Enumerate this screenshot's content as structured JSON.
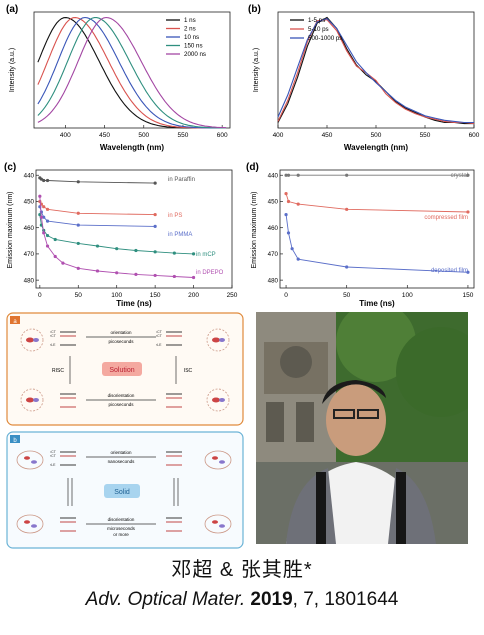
{
  "panels": {
    "a": {
      "label": "(a)",
      "ylabel": "Intensity (a.u.)",
      "xlabel": "Wavelength (nm)",
      "xticks": [
        "400",
        "450",
        "500",
        "550",
        "600"
      ],
      "legend": [
        "1 ns",
        "2 ns",
        "10 ns",
        "150 ns",
        "2000 ns"
      ]
    },
    "b": {
      "label": "(b)",
      "ylabel": "Intensity (a.u.)",
      "xlabel": "Wavelength (nm)",
      "xticks": [
        "400",
        "450",
        "500",
        "550",
        "600"
      ],
      "legend": [
        "1-5 ps",
        "5-10 ps",
        "500-1000 ps"
      ]
    },
    "c": {
      "label": "(c)",
      "ylabel": "Emission maximum (nm)",
      "xlabel": "Time (ns)",
      "xticks": [
        "0",
        "50",
        "100",
        "150",
        "200",
        "250"
      ],
      "yticks": [
        "440",
        "450",
        "460",
        "470",
        "480"
      ],
      "annotations": [
        "in Paraffin",
        "in PS",
        "in PMMA",
        "in mCP",
        "in DPEPO"
      ]
    },
    "d": {
      "label": "(d)",
      "ylabel": "Emission maximum (nm)",
      "xlabel": "Time (ns)",
      "xticks": [
        "0",
        "50",
        "100",
        "150"
      ],
      "yticks": [
        "440",
        "450",
        "460",
        "470",
        "480"
      ],
      "annotations": [
        "crystal",
        "compressed film",
        "deposited film"
      ]
    }
  },
  "scheme_top": {
    "tag": "a",
    "center_label": "Solution",
    "left_label": "RISC",
    "right_label": "ISC",
    "top_text": [
      "orientation",
      "picoseconds"
    ],
    "bottom_text": [
      "disorientation",
      "picoseconds"
    ],
    "levels": [
      "¹CT",
      "³CT",
      "³LE"
    ]
  },
  "scheme_bottom": {
    "tag": "b",
    "center_label": "Solid",
    "top_text": [
      "orientation",
      "nanoseconds"
    ],
    "bottom_text": [
      "disorientation",
      "microseconds",
      "or more"
    ],
    "levels": [
      "¹CT",
      "³CT",
      "³LE"
    ]
  },
  "caption": {
    "authors": "邓超 & 张其胜*",
    "journal": "Adv. Optical Mater.",
    "year": "2019",
    "rest": ", 7, 1801644"
  },
  "chart_data": [
    {
      "type": "line",
      "title": "",
      "xlabel": "Wavelength (nm)",
      "ylabel": "Intensity (a.u.)",
      "xlim": [
        360,
        610
      ],
      "ylim": [
        0,
        1.05
      ],
      "legend_position": "top-right",
      "series": [
        {
          "name": "1 ns",
          "color": "#111111",
          "peak": 400,
          "width": 55
        },
        {
          "name": "2 ns",
          "color": "#d9534f",
          "peak": 412,
          "width": 55
        },
        {
          "name": "10 ns",
          "color": "#3a56b8",
          "peak": 425,
          "width": 55
        },
        {
          "name": "150 ns",
          "color": "#2f8f7f",
          "peak": 438,
          "width": 56
        },
        {
          "name": "2000 ns",
          "color": "#a347a3",
          "peak": 452,
          "width": 57
        }
      ]
    },
    {
      "type": "line",
      "title": "",
      "xlabel": "Wavelength (nm)",
      "ylabel": "Intensity (a.u.)",
      "xlim": [
        400,
        600
      ],
      "ylim": [
        0,
        1.05
      ],
      "legend_position": "top-right",
      "series": [
        {
          "name": "1-5 ps",
          "color": "#111111",
          "x": [
            400,
            410,
            420,
            430,
            440,
            450,
            460,
            470,
            480,
            490,
            500,
            510,
            520,
            530,
            540,
            550,
            560,
            570,
            580,
            590,
            600
          ],
          "y": [
            0.05,
            0.22,
            0.46,
            0.74,
            0.95,
            1.0,
            0.9,
            0.72,
            0.57,
            0.48,
            0.42,
            0.33,
            0.24,
            0.18,
            0.14,
            0.1,
            0.07,
            0.05,
            0.05,
            0.04,
            0.04
          ]
        },
        {
          "name": "5-10 ps",
          "color": "#d9534f",
          "x": [
            400,
            410,
            420,
            430,
            440,
            450,
            460,
            470,
            480,
            490,
            500,
            510,
            520,
            530,
            540,
            550,
            560,
            570,
            580,
            590,
            600
          ],
          "y": [
            0.06,
            0.25,
            0.5,
            0.78,
            0.97,
            0.98,
            0.88,
            0.7,
            0.56,
            0.5,
            0.43,
            0.31,
            0.23,
            0.17,
            0.13,
            0.1,
            0.08,
            0.06,
            0.05,
            0.05,
            0.04
          ]
        },
        {
          "name": "500-1000 ps",
          "color": "#3a56b8",
          "x": [
            400,
            410,
            420,
            430,
            440,
            450,
            460,
            470,
            480,
            490,
            500,
            510,
            520,
            530,
            540,
            550,
            560,
            570,
            580,
            590,
            600
          ],
          "y": [
            0.1,
            0.3,
            0.55,
            0.8,
            0.96,
            0.99,
            0.9,
            0.75,
            0.6,
            0.5,
            0.41,
            0.33,
            0.25,
            0.19,
            0.15,
            0.11,
            0.09,
            0.07,
            0.06,
            0.05,
            0.05
          ]
        }
      ]
    },
    {
      "type": "scatter",
      "title": "",
      "xlabel": "Time (ns)",
      "ylabel": "Emission maximum (nm)",
      "xlim": [
        -5,
        250
      ],
      "ylim": [
        483,
        438
      ],
      "series": [
        {
          "name": "in Paraffin",
          "color": "#555555",
          "x": [
            0,
            2,
            5,
            10,
            50,
            150
          ],
          "y": [
            441,
            441.5,
            442,
            442,
            442.5,
            443
          ]
        },
        {
          "name": "in PS",
          "color": "#e06a5f",
          "x": [
            0,
            2,
            5,
            10,
            50,
            150
          ],
          "y": [
            450,
            451,
            452,
            453,
            454.5,
            455
          ]
        },
        {
          "name": "in PMMA",
          "color": "#5b6fc9",
          "x": [
            0,
            2,
            5,
            10,
            50,
            150
          ],
          "y": [
            452,
            454,
            456,
            457.5,
            459,
            459.5
          ]
        },
        {
          "name": "in mCP",
          "color": "#2f8f7f",
          "x": [
            0,
            2,
            5,
            10,
            20,
            50,
            75,
            100,
            125,
            150,
            175,
            200
          ],
          "y": [
            455,
            459,
            461,
            463,
            464.5,
            466,
            467,
            468,
            468.7,
            469.2,
            469.7,
            470
          ]
        },
        {
          "name": "in DPEPO",
          "color": "#b050b0",
          "x": [
            0,
            2,
            5,
            10,
            20,
            30,
            50,
            75,
            100,
            125,
            150,
            175,
            200
          ],
          "y": [
            448,
            456,
            462,
            467,
            471,
            473.5,
            475.5,
            476.5,
            477.2,
            477.8,
            478.2,
            478.6,
            479
          ]
        }
      ]
    },
    {
      "type": "scatter",
      "title": "",
      "xlabel": "Time (ns)",
      "ylabel": "Emission maximum (nm)",
      "xlim": [
        -5,
        155
      ],
      "ylim": [
        483,
        438
      ],
      "series": [
        {
          "name": "crystal",
          "color": "#777777",
          "x": [
            0,
            2,
            10,
            50,
            150
          ],
          "y": [
            440,
            440,
            440,
            440,
            440
          ]
        },
        {
          "name": "compressed film",
          "color": "#e06a5f",
          "x": [
            0,
            2,
            10,
            50,
            150
          ],
          "y": [
            447,
            450,
            451,
            453,
            454
          ]
        },
        {
          "name": "deposited film",
          "color": "#5b6fc9",
          "x": [
            0,
            2,
            5,
            10,
            50,
            150
          ],
          "y": [
            455,
            462,
            468,
            472,
            475,
            477
          ]
        }
      ]
    }
  ]
}
